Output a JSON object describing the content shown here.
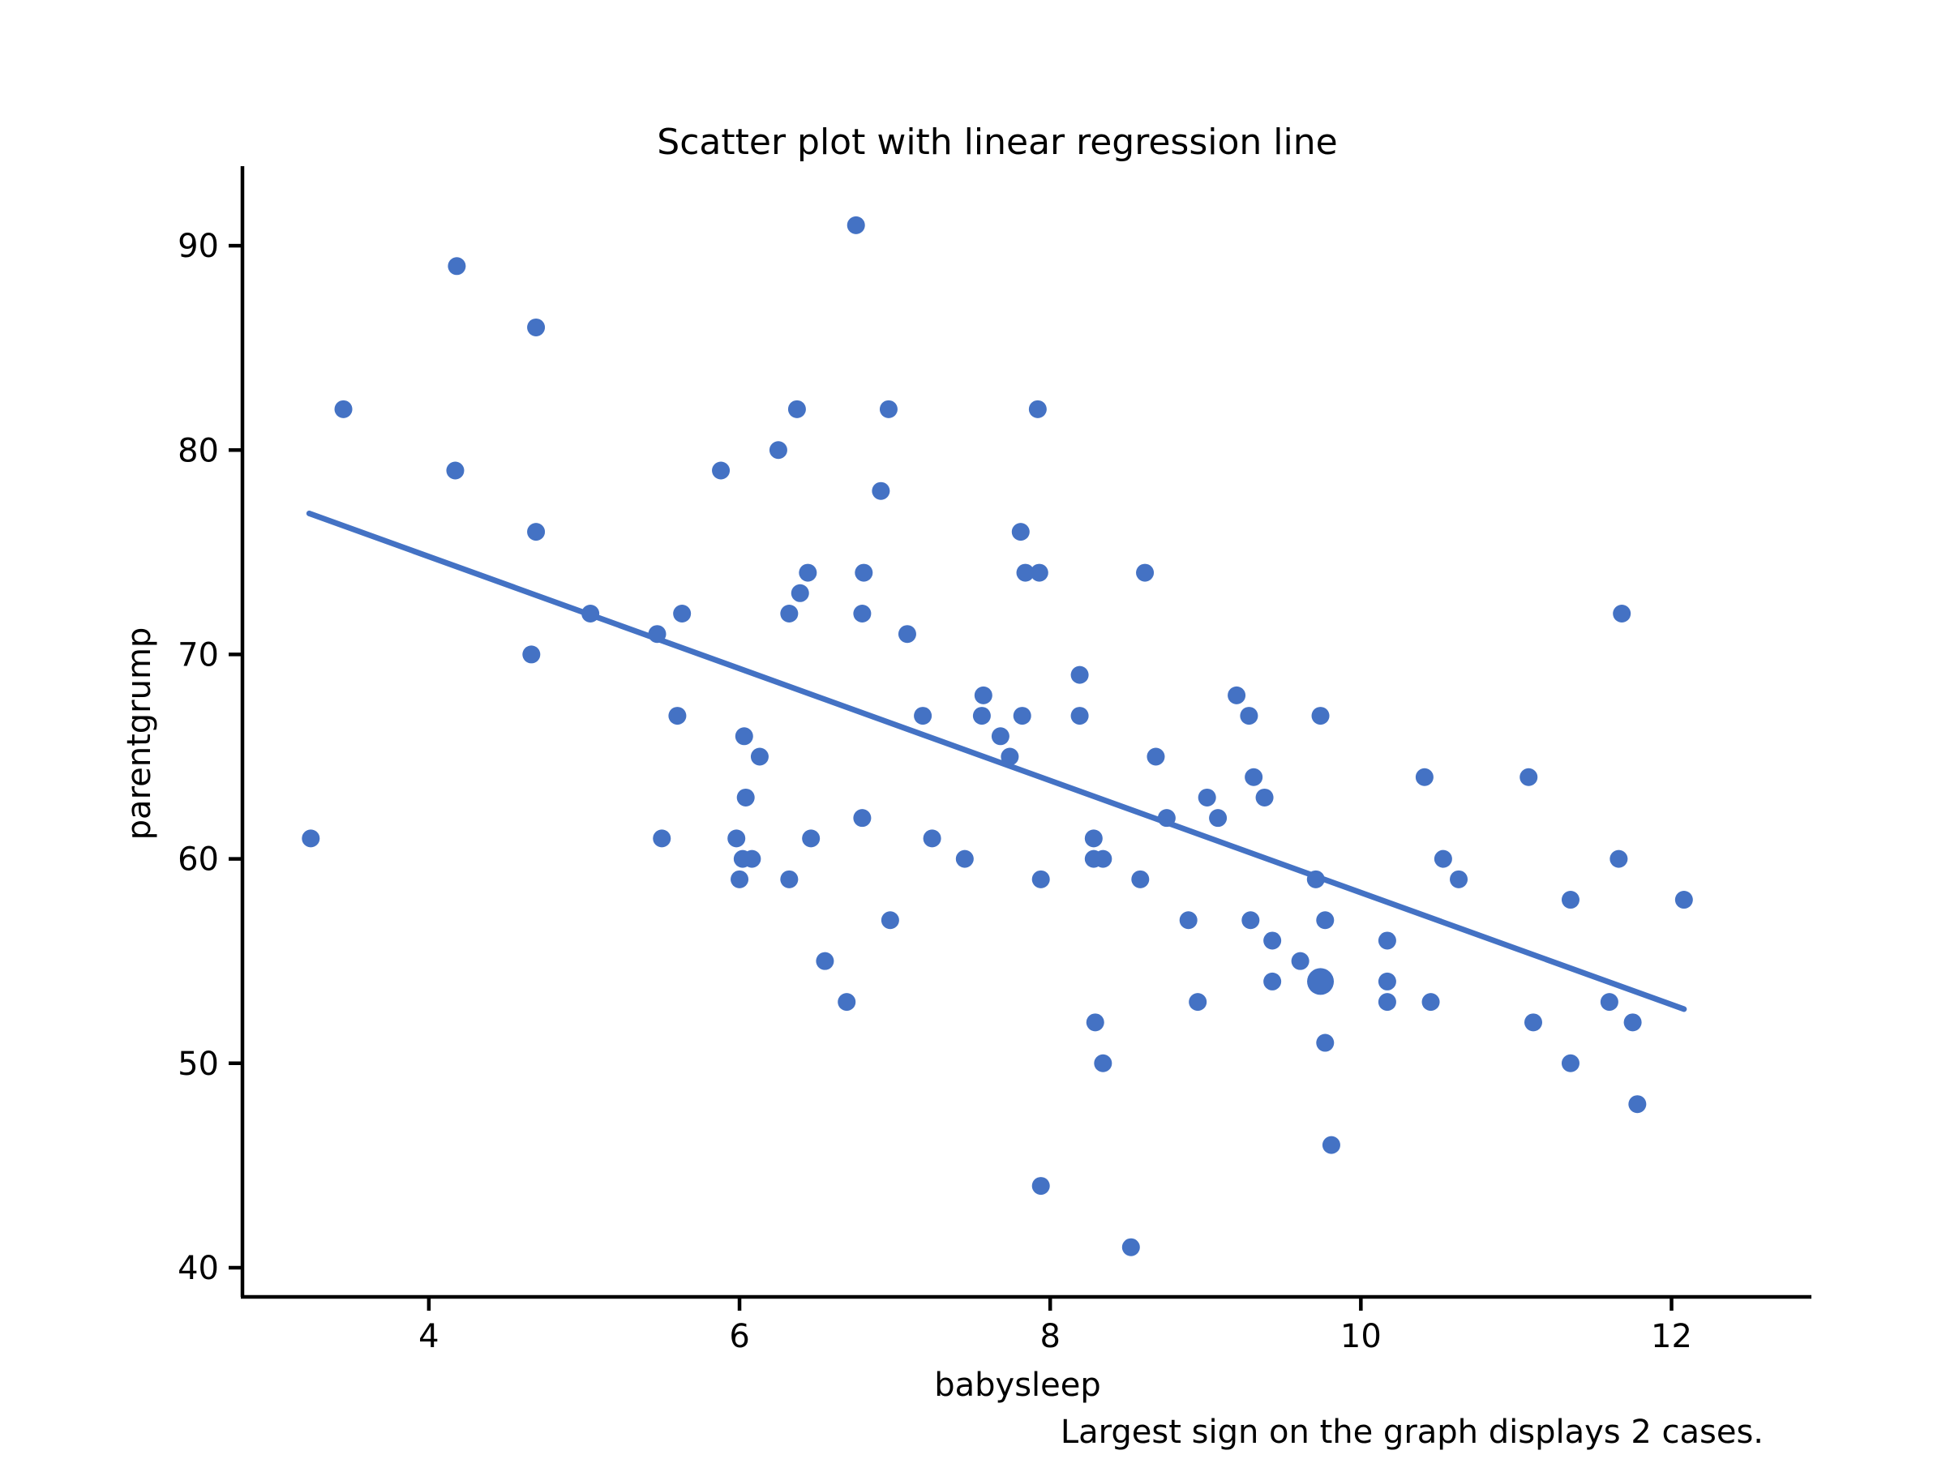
{
  "chart_data": {
    "type": "scatter",
    "title": "Scatter plot with linear regression line",
    "xlabel": "babysleep",
    "ylabel": "parentgrump",
    "annotation": "Largest sign on the graph displays 2 cases.",
    "marker_color": "#4472C4",
    "line_color": "#4472C4",
    "grid": false,
    "legend": "none",
    "xlim": [
      2.8,
      12.89
    ],
    "ylim": [
      38.57,
      93.89
    ],
    "x_ticks": [
      4,
      6,
      8,
      10,
      12
    ],
    "y_ticks": [
      40,
      50,
      60,
      70,
      80,
      90
    ],
    "points": [
      [
        3.24,
        61
      ],
      [
        3.45,
        82
      ],
      [
        4.17,
        79
      ],
      [
        4.18,
        89
      ],
      [
        4.66,
        70
      ],
      [
        4.69,
        86
      ],
      [
        4.69,
        76
      ],
      [
        5.04,
        72
      ],
      [
        5.47,
        71
      ],
      [
        5.5,
        61
      ],
      [
        5.6,
        67
      ],
      [
        5.63,
        72
      ],
      [
        5.88,
        79
      ],
      [
        5.98,
        61
      ],
      [
        6.0,
        59
      ],
      [
        6.02,
        60
      ],
      [
        6.08,
        60
      ],
      [
        6.03,
        66
      ],
      [
        6.04,
        63
      ],
      [
        6.13,
        65
      ],
      [
        6.25,
        80
      ],
      [
        6.32,
        72
      ],
      [
        6.32,
        59
      ],
      [
        6.37,
        82
      ],
      [
        6.39,
        73
      ],
      [
        6.44,
        74
      ],
      [
        6.46,
        61
      ],
      [
        6.55,
        55
      ],
      [
        6.69,
        53
      ],
      [
        6.75,
        91
      ],
      [
        6.79,
        72
      ],
      [
        6.79,
        62
      ],
      [
        6.8,
        74
      ],
      [
        6.91,
        78
      ],
      [
        6.96,
        82
      ],
      [
        6.97,
        57
      ],
      [
        7.08,
        71
      ],
      [
        7.18,
        67
      ],
      [
        7.24,
        61
      ],
      [
        7.45,
        60
      ],
      [
        7.56,
        67
      ],
      [
        7.57,
        68
      ],
      [
        7.68,
        66
      ],
      [
        7.74,
        65
      ],
      [
        7.81,
        76
      ],
      [
        7.82,
        67
      ],
      [
        7.84,
        74
      ],
      [
        7.93,
        74
      ],
      [
        7.92,
        82
      ],
      [
        7.94,
        59
      ],
      [
        7.94,
        44
      ],
      [
        8.19,
        69
      ],
      [
        8.19,
        67
      ],
      [
        8.28,
        60
      ],
      [
        8.34,
        60
      ],
      [
        8.28,
        61
      ],
      [
        8.29,
        52
      ],
      [
        8.34,
        50
      ],
      [
        8.52,
        41
      ],
      [
        8.58,
        59
      ],
      [
        8.61,
        74
      ],
      [
        8.68,
        65
      ],
      [
        8.75,
        62
      ],
      [
        8.89,
        57
      ],
      [
        8.95,
        53
      ],
      [
        9.01,
        63
      ],
      [
        9.08,
        62
      ],
      [
        9.2,
        68
      ],
      [
        9.28,
        67
      ],
      [
        9.29,
        57
      ],
      [
        9.31,
        64
      ],
      [
        9.38,
        63
      ],
      [
        9.43,
        56
      ],
      [
        9.43,
        54
      ],
      [
        9.61,
        55
      ],
      [
        9.71,
        59
      ],
      [
        9.74,
        67
      ],
      [
        9.77,
        57
      ],
      [
        9.77,
        51
      ],
      [
        9.81,
        46
      ],
      [
        10.17,
        56
      ],
      [
        10.17,
        54
      ],
      [
        10.17,
        53
      ],
      [
        10.41,
        64
      ],
      [
        10.45,
        53
      ],
      [
        10.53,
        60
      ],
      [
        10.63,
        59
      ],
      [
        11.08,
        64
      ],
      [
        11.11,
        52
      ],
      [
        11.35,
        58
      ],
      [
        11.35,
        50
      ],
      [
        11.6,
        53
      ],
      [
        11.66,
        60
      ],
      [
        11.68,
        72
      ],
      [
        11.75,
        52
      ],
      [
        11.78,
        48
      ],
      [
        12.08,
        58
      ]
    ],
    "two_case_points": [
      [
        9.74,
        54
      ]
    ],
    "regression_line": {
      "x1": 3.23,
      "y1": 76.9,
      "x2": 12.08,
      "y2": 52.65
    }
  }
}
